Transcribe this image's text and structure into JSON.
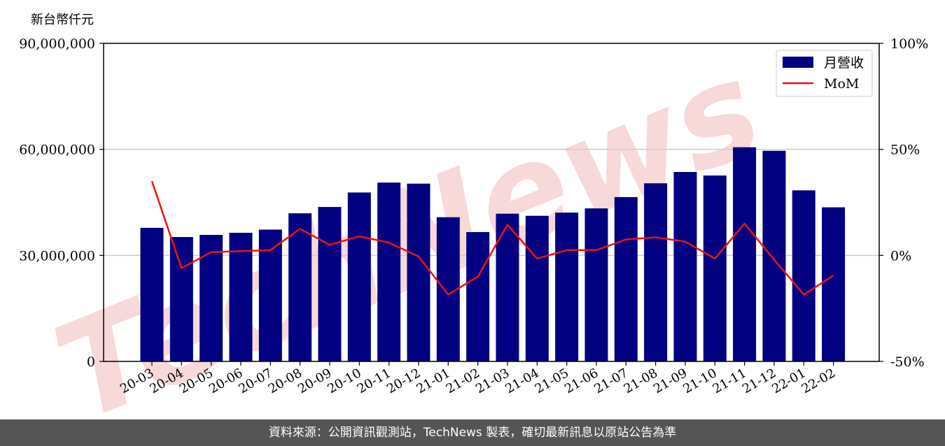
{
  "y_unit_label": "新台幣仟元",
  "footer_text": "資料來源：公開資訊觀測站，TechNews 製表，確切最新訊息以原站公告為準",
  "watermark_text": "TechNews",
  "colors": {
    "bar": "#000080",
    "line": "#ee1111",
    "grid": "#cccccc",
    "watermark": "#f7d9d9"
  },
  "chart_data": {
    "type": "bar",
    "categories": [
      "20-03",
      "20-04",
      "20-05",
      "20-06",
      "20-07",
      "20-08",
      "20-09",
      "20-10",
      "20-11",
      "20-12",
      "21-01",
      "21-02",
      "21-03",
      "21-04",
      "21-05",
      "21-06",
      "21-07",
      "21-08",
      "21-09",
      "21-10",
      "21-11",
      "21-12",
      "22-01",
      "22-02"
    ],
    "series": [
      {
        "name": "月營收",
        "type": "bar",
        "axis": "left",
        "values": [
          37800000,
          35200000,
          35800000,
          36400000,
          37300000,
          41900000,
          43700000,
          47800000,
          50600000,
          50300000,
          40800000,
          36600000,
          41800000,
          41200000,
          42100000,
          43300000,
          46500000,
          50400000,
          53600000,
          52600000,
          60600000,
          59600000,
          48400000,
          43600000
        ]
      },
      {
        "name": "MoM",
        "type": "line",
        "axis": "right",
        "values": [
          35,
          -6,
          1.5,
          2,
          2.5,
          12.5,
          5,
          9,
          6,
          -0.5,
          -18.5,
          -10,
          14.5,
          -1.5,
          2.5,
          2.5,
          7.5,
          8.5,
          6.5,
          -1.5,
          15,
          -2,
          -18.5,
          -9.5
        ]
      }
    ],
    "left_axis": {
      "ylim": [
        0,
        90000000
      ],
      "ticks": [
        "0",
        "30,000,000",
        "60,000,000",
        "90,000,000"
      ],
      "tick_values": [
        0,
        30000000,
        60000000,
        90000000
      ]
    },
    "right_axis": {
      "ylim": [
        -50,
        100
      ],
      "ticks": [
        "-50%",
        "0%",
        "50%",
        "100%"
      ],
      "tick_values": [
        -50,
        0,
        50,
        100
      ]
    },
    "grid": true,
    "legend_position": "top-right"
  }
}
